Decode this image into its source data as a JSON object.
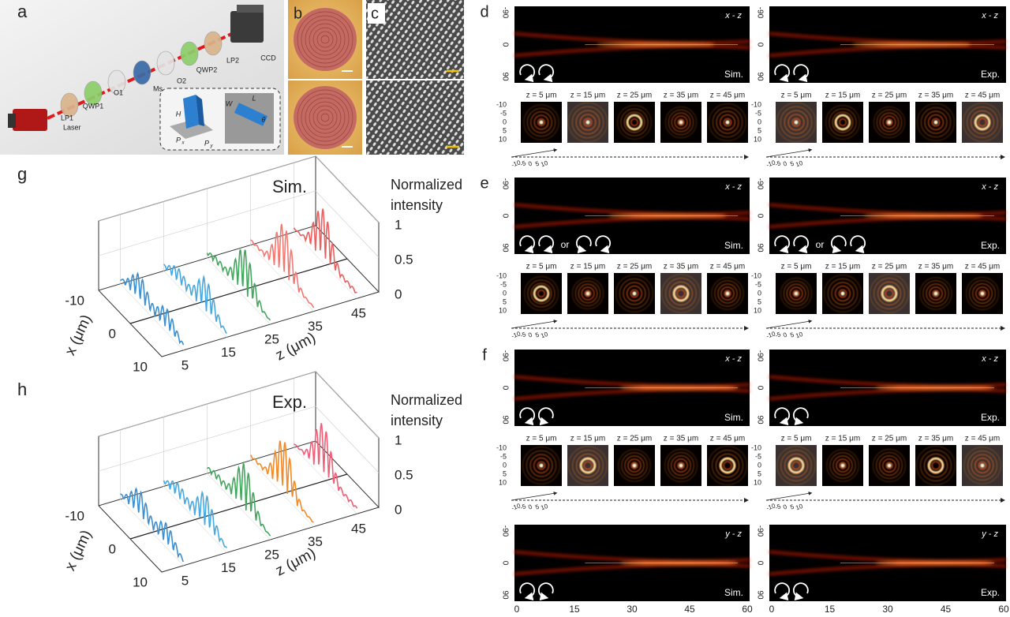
{
  "panel_a": {
    "label": "a",
    "laser": "Laser",
    "components": [
      "LP1",
      "QWP1",
      "O1",
      "Ms",
      "O2",
      "QWP2",
      "LP2",
      "CCD"
    ],
    "inset_labels": [
      "H",
      "P",
      "x",
      "P",
      "y",
      "W",
      "L",
      "θ"
    ]
  },
  "panel_b": {
    "label": "b"
  },
  "panel_c": {
    "label": "c"
  },
  "field_panels": [
    {
      "label": "d",
      "strips": [
        {
          "sim": {
            "plane": "x - z",
            "tag": "Sim."
          },
          "exp": {
            "plane": "x - z",
            "tag": "Exp."
          }
        }
      ]
    },
    {
      "label": "e",
      "strips": [
        {
          "sim": {
            "plane": "x - z",
            "tag": "Sim.",
            "or": "or"
          },
          "exp": {
            "plane": "x - z",
            "tag": "Exp.",
            "or": "or"
          }
        }
      ]
    },
    {
      "label": "f",
      "strips": [
        {
          "sim": {
            "plane": "x - z",
            "tag": "Sim."
          },
          "exp": {
            "plane": "x - z",
            "tag": "Exp."
          }
        },
        {
          "sim": {
            "plane": "y - z",
            "tag": "Sim."
          },
          "exp": {
            "plane": "y - z",
            "tag": "Exp."
          }
        }
      ]
    }
  ],
  "field_axes": {
    "strip_ticks": [
      -90,
      0,
      90
    ],
    "image_ticks": [
      -10,
      -5,
      0,
      5,
      10
    ],
    "z_labels": [
      "z = 5 μm",
      "z = 15 μm",
      "z = 25 μm",
      "z = 35 μm",
      "z = 45 μm"
    ],
    "distance_ticks": [
      0,
      15,
      30,
      45,
      60
    ]
  },
  "intensity_plots": [
    {
      "label": "g",
      "tag": "Sim.",
      "y_title": [
        "Normalized",
        "intensity"
      ],
      "y_ticks": [
        1,
        0.5,
        0
      ],
      "x_title": "x (μm)",
      "x_ticks": [
        -10,
        0,
        10
      ],
      "z_title": "z (μm)",
      "z_ticks": [
        5,
        15,
        25,
        35,
        45
      ]
    },
    {
      "label": "h",
      "tag": "Exp.",
      "y_title": [
        "Normalized",
        "intensity"
      ],
      "y_ticks": [
        1,
        0.5,
        0
      ],
      "x_title": "x (μm)",
      "x_ticks": [
        -10,
        0,
        10
      ],
      "z_title": "z (μm)",
      "z_ticks": [
        5,
        15,
        25,
        35,
        45
      ]
    }
  ]
}
